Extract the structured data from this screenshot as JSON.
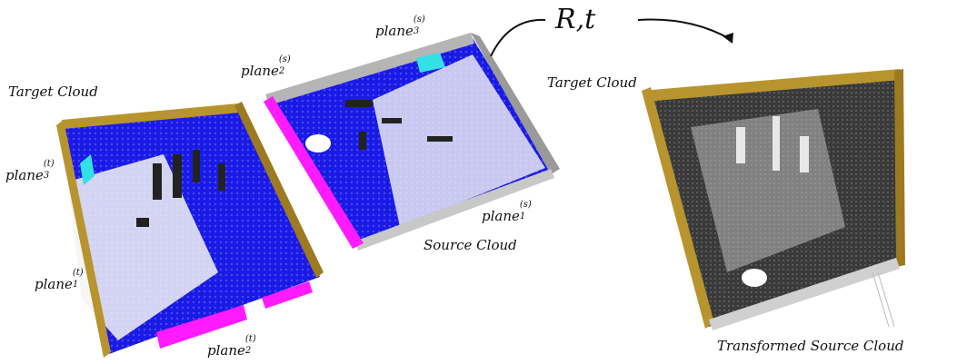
{
  "transform": {
    "label": "R,t"
  },
  "clouds": {
    "target_left": "Target Cloud",
    "source": "Source Cloud",
    "target_right": "Target Cloud",
    "transformed": "Transformed Source Cloud"
  },
  "planes": {
    "p3s": {
      "base": "plane",
      "sub": "3",
      "sup": "(s)"
    },
    "p2s": {
      "base": "plane",
      "sub": "2",
      "sup": "(s)"
    },
    "p1s": {
      "base": "plane",
      "sub": "1",
      "sup": "(s)"
    },
    "p3t": {
      "base": "plane",
      "sub": "3",
      "sup": "(t)"
    },
    "p1t": {
      "base": "plane",
      "sub": "1",
      "sup": "(t)"
    },
    "p2t": {
      "base": "plane",
      "sub": "2",
      "sup": "(t)"
    }
  },
  "colors": {
    "target_wall": "#b8942e",
    "source_wall": "#b5b5b5",
    "floor_blue": "#1a1ae6",
    "plane_cyan": "#33e0e6",
    "plane_magenta": "#ff1aff",
    "transformed_floor": "#3a3a3a"
  }
}
